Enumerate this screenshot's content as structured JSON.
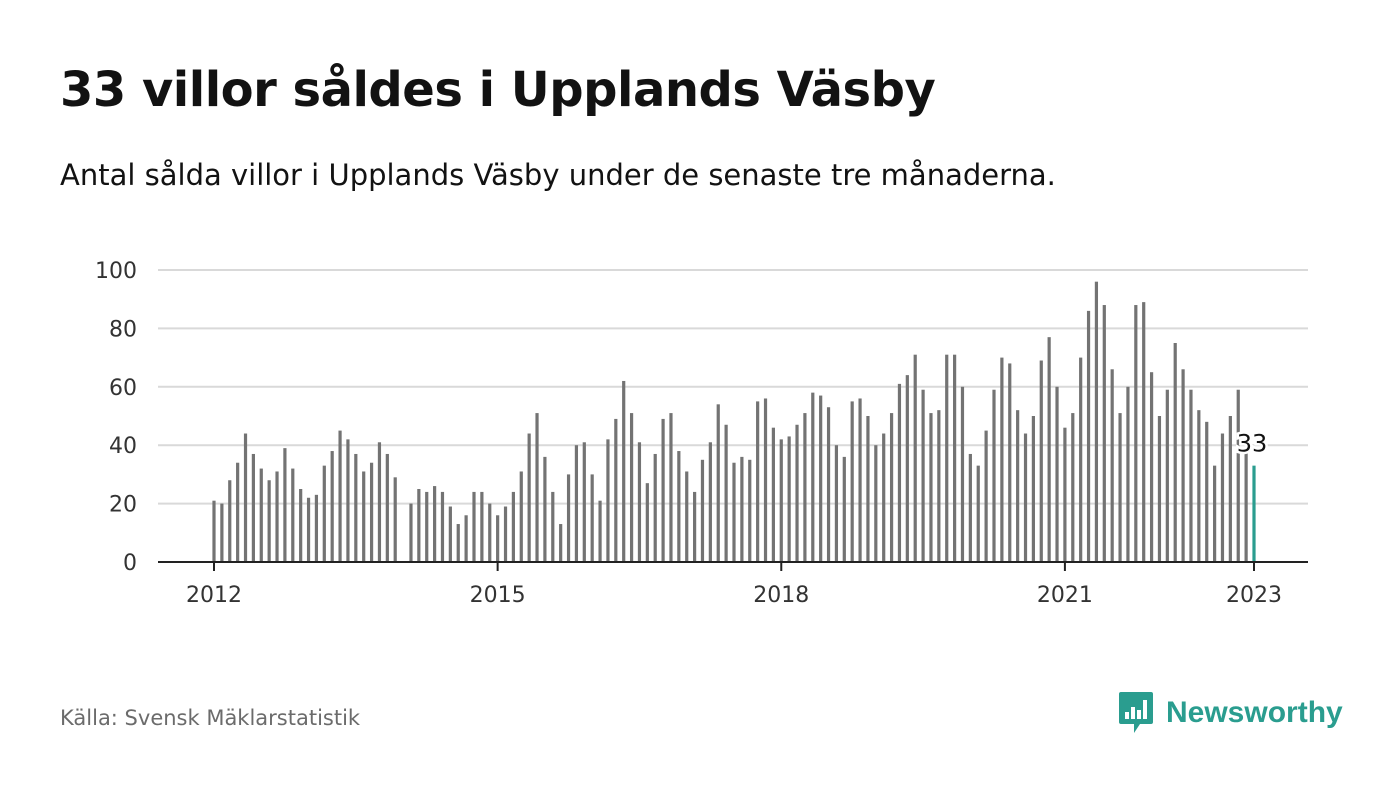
{
  "header": {
    "title": "33 villor såldes i Upplands Väsby",
    "subtitle": "Antal sålda villor i Upplands Väsby under de senaste tre månaderna."
  },
  "footer": {
    "source": "Källa: Svensk Mäklarstatistik",
    "brand": "Newsworthy"
  },
  "colors": {
    "bar": "#737373",
    "highlight": "#2a9d8f",
    "grid": "#d9d9d9",
    "brand": "#2a9d8f"
  },
  "chart_data": {
    "type": "bar",
    "title": "33 villor såldes i Upplands Väsby",
    "subtitle": "Antal sålda villor i Upplands Väsby under de senaste tre månaderna.",
    "xlabel": "",
    "ylabel": "",
    "ylim": [
      0,
      100
    ],
    "yticks": [
      0,
      20,
      40,
      60,
      80,
      100
    ],
    "xticks": [
      "2012",
      "2015",
      "2018",
      "2021",
      "2023"
    ],
    "grid": "horizontal",
    "start_month": "2012-01",
    "end_month": "2023-01",
    "values": [
      21,
      20,
      28,
      34,
      44,
      37,
      32,
      28,
      31,
      39,
      32,
      25,
      22,
      23,
      33,
      38,
      45,
      42,
      37,
      31,
      34,
      41,
      37,
      29,
      null,
      20,
      25,
      24,
      26,
      24,
      19,
      13,
      16,
      24,
      24,
      20,
      16,
      19,
      24,
      31,
      44,
      51,
      36,
      24,
      13,
      30,
      40,
      41,
      30,
      21,
      42,
      49,
      62,
      51,
      41,
      27,
      37,
      49,
      51,
      38,
      31,
      24,
      35,
      41,
      54,
      47,
      34,
      36,
      35,
      55,
      56,
      46,
      42,
      43,
      47,
      51,
      58,
      57,
      53,
      40,
      36,
      55,
      56,
      50,
      40,
      44,
      51,
      61,
      64,
      71,
      59,
      51,
      52,
      71,
      71,
      60,
      37,
      33,
      45,
      59,
      70,
      68,
      52,
      44,
      50,
      69,
      77,
      60,
      46,
      51,
      70,
      86,
      96,
      88,
      66,
      51,
      60,
      88,
      89,
      65,
      50,
      59,
      75,
      66,
      59,
      52,
      48,
      33,
      44,
      50,
      59,
      38,
      33
    ],
    "highlight": {
      "month": "2023-01",
      "value": 33,
      "label": "33"
    }
  }
}
